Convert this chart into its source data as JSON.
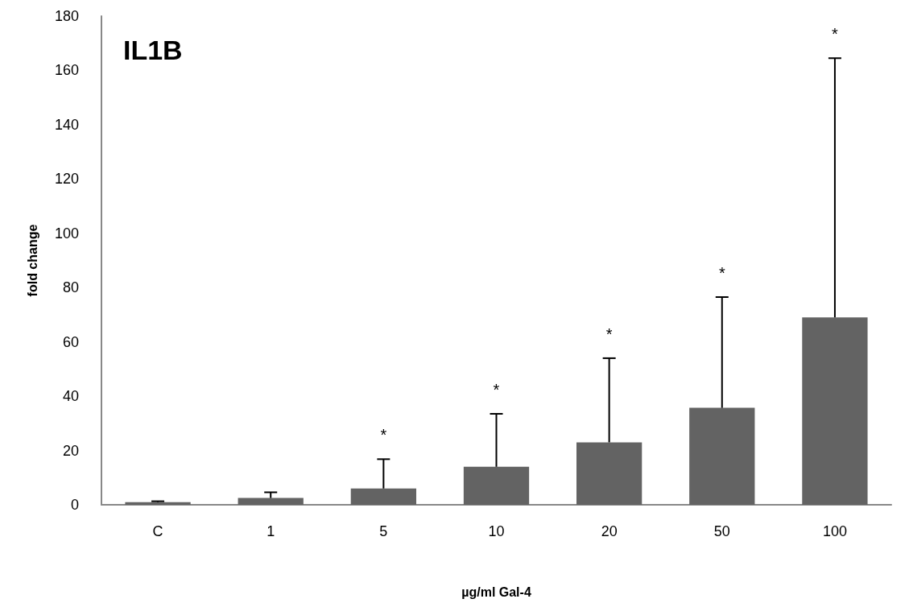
{
  "chart_data": {
    "type": "bar",
    "title": "IL1B",
    "xlabel": "µg/ml Gal-4",
    "ylabel": "fold change",
    "categories": [
      "C",
      "1",
      "5",
      "10",
      "20",
      "50",
      "100"
    ],
    "values": [
      1,
      2.5,
      6,
      14,
      23,
      35.7,
      69
    ],
    "errors": [
      [
        1,
        1.3
      ],
      [
        2.5,
        4.6
      ],
      [
        6,
        16.8
      ],
      [
        14,
        33.5
      ],
      [
        23,
        54
      ],
      [
        35.7,
        76.5
      ],
      [
        69,
        164.5
      ]
    ],
    "color": "#636363",
    "ylim": [
      0,
      180
    ],
    "yticks": [
      0,
      20,
      40,
      60,
      80,
      100,
      120,
      140,
      160,
      180
    ],
    "grid": false,
    "annotations": [
      "*",
      "*",
      "*",
      "*",
      "*"
    ]
  }
}
